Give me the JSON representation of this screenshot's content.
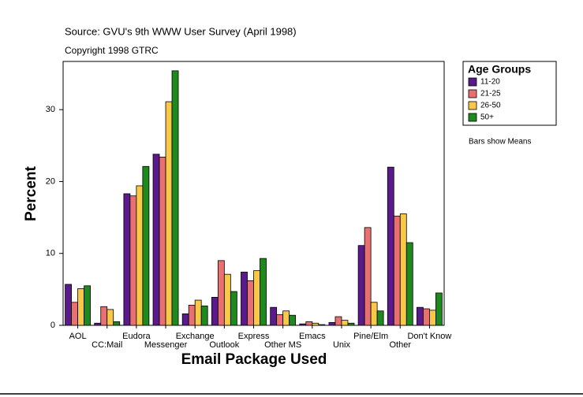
{
  "chart_data": {
    "type": "bar",
    "source": "Source: GVU's 9th WWW User Survey (April 1998)",
    "copyright": "Copyright 1998 GTRC",
    "xlabel": "Email Package Used",
    "ylabel": "Percent",
    "legend_title": "Age Groups",
    "note": "Bars show Means",
    "categories": [
      "AOL",
      "CC:Mail",
      "Eudora",
      "Messenger",
      "Exchange",
      "Outlook",
      "Express",
      "Other MS",
      "Emacs",
      "Unix",
      "Pine/Elm",
      "Other",
      "Don't Know"
    ],
    "series": [
      {
        "name": "11-20",
        "color": "#5a1a8c",
        "values": [
          5.7,
          0.3,
          18.3,
          23.8,
          1.6,
          3.9,
          7.4,
          2.5,
          0.2,
          0.4,
          11.1,
          22.0,
          2.5
        ]
      },
      {
        "name": "21-25",
        "color": "#e87070",
        "values": [
          3.2,
          2.6,
          18.0,
          23.4,
          2.8,
          9.0,
          6.2,
          1.5,
          0.5,
          1.2,
          13.6,
          15.2,
          2.3
        ]
      },
      {
        "name": "26-50",
        "color": "#f8c848",
        "values": [
          5.1,
          2.2,
          19.4,
          31.1,
          3.5,
          7.1,
          7.6,
          2.0,
          0.3,
          0.7,
          3.2,
          15.5,
          2.1
        ]
      },
      {
        "name": "50+",
        "color": "#1e8a1e",
        "values": [
          5.5,
          0.5,
          22.1,
          35.4,
          2.7,
          4.7,
          9.3,
          1.4,
          0.1,
          0.3,
          2.0,
          11.5,
          4.5
        ]
      }
    ],
    "ylim": [
      0,
      36.7
    ],
    "yticks": [
      0,
      10,
      20,
      30
    ]
  }
}
